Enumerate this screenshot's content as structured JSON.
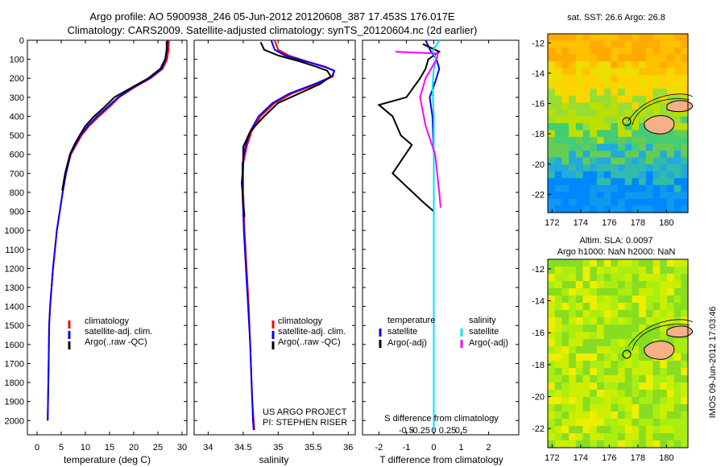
{
  "header": {
    "line1": "Argo profile: AO 5900938_246 05-Jun-2012 20120608_387 17.453S 176.017E",
    "line2": "Climatology: CARS2009. Satellite-adjusted climatology: synTS_20120604.nc (2d earlier)"
  },
  "colors": {
    "climatology": "#ff0000",
    "satellite": "#0000ff",
    "argo": "#000000",
    "sal_satellite": "#00e5ee",
    "sal_argo": "#ff00ff"
  },
  "depth_axis": {
    "ticks": [
      "0",
      "100",
      "200",
      "300",
      "400",
      "500",
      "600",
      "700",
      "800",
      "900",
      "1000",
      "1100",
      "1200",
      "1300",
      "1400",
      "1500",
      "1600",
      "1700",
      "1800",
      "1900",
      "2000"
    ],
    "ylim": [
      0,
      2075
    ]
  },
  "temp_panel": {
    "xlabel": "temperature (deg C)",
    "xticks": [
      "0",
      "5",
      "10",
      "15",
      "20",
      "25",
      "30"
    ],
    "xlim": [
      -2,
      31
    ],
    "legend": [
      "climatology",
      "satellite-adj. clim.",
      "Argo(..raw -QC)"
    ]
  },
  "sal_panel": {
    "xlabel": "salinity",
    "xticks": [
      "34",
      "34.5",
      "35",
      "35.5",
      "36"
    ],
    "xlim": [
      33.8,
      36.1
    ],
    "legend": [
      "climatology",
      "satellite-adj. clim.",
      "Argo(..raw -QC)"
    ],
    "credit1": "US ARGO PROJECT",
    "credit2": "PI: STEPHEN RISER"
  },
  "diff_panel": {
    "xlabel": "T difference from climatology",
    "xlabel_top": "S difference from climatology",
    "xticks": [
      "-2",
      "-1",
      "0",
      "1",
      "2"
    ],
    "xticks_s": [
      "-0.5",
      "-0.25",
      "0",
      "0.25",
      "0.5"
    ],
    "xlim": [
      -2.6,
      3.1
    ],
    "legend_t_title": "temperature",
    "legend_s_title": "salinity",
    "legend_t": [
      "satellite",
      "Argo(-adj)"
    ],
    "legend_s": [
      "satellite",
      "Argo(-adj)"
    ]
  },
  "map_sst": {
    "title": "sat. SST: 26.6  Argo: 26.8",
    "yticks": [
      "-12",
      "-14",
      "-16",
      "-18",
      "-20",
      "-22"
    ],
    "xticks": [
      "172",
      "174",
      "176",
      "178",
      "180"
    ],
    "lat_range": [
      -23.5,
      -11.5
    ],
    "lon_range": [
      170.5,
      180.5
    ]
  },
  "map_sla": {
    "title1": "Altim. SLA: 0.0097",
    "title2": "Argo h1000: NaN h2000: NaN",
    "yticks": [
      "-12",
      "-14",
      "-16",
      "-18",
      "-20",
      "-22"
    ],
    "xticks": [
      "172",
      "174",
      "176",
      "178",
      "180"
    ]
  },
  "watermark": "IMOS 09-Jun-2012 17:03:46",
  "chart_data": [
    {
      "type": "line",
      "xlabel": "temperature (deg C)",
      "ylabel": "",
      "xlim": [
        -2,
        31
      ],
      "ylim": [
        0,
        2075
      ],
      "y_axis_inverted": true,
      "series": [
        {
          "name": "climatology",
          "x": [
            27.3,
            27.2,
            26.9,
            26.0,
            23.5,
            20.0,
            17.0,
            15.0,
            12.8,
            10.8,
            9.2,
            8.1,
            7.0,
            6.0,
            5.3,
            4.7,
            4.1,
            3.7,
            3.3,
            3.0,
            2.7,
            2.5,
            2.4,
            2.2
          ],
          "y": [
            0,
            50,
            100,
            150,
            200,
            250,
            300,
            350,
            400,
            450,
            500,
            550,
            600,
            700,
            800,
            900,
            1000,
            1100,
            1200,
            1300,
            1400,
            1500,
            1700,
            2000
          ]
        },
        {
          "name": "satellite-adj. clim.",
          "x": [
            27.0,
            26.9,
            26.6,
            25.8,
            23.3,
            19.8,
            16.8,
            14.6,
            12.4,
            10.5,
            9.0,
            7.9,
            6.9,
            6.0,
            5.3,
            4.7,
            4.1,
            3.7,
            3.3,
            3.0,
            2.7,
            2.5,
            2.4,
            2.2
          ],
          "y": [
            0,
            50,
            100,
            150,
            200,
            250,
            300,
            350,
            400,
            450,
            500,
            550,
            600,
            700,
            800,
            900,
            1000,
            1100,
            1200,
            1300,
            1400,
            1500,
            1700,
            2000
          ]
        },
        {
          "name": "Argo(..raw -QC)",
          "x": [
            26.8,
            26.8,
            26.5,
            25.5,
            23.0,
            19.5,
            16.0,
            14.0,
            11.8,
            10.0,
            8.8,
            7.7,
            6.8,
            5.8,
            5.2
          ],
          "y": [
            5,
            50,
            100,
            150,
            200,
            250,
            300,
            350,
            400,
            450,
            500,
            550,
            600,
            700,
            790
          ]
        }
      ]
    },
    {
      "type": "line",
      "xlabel": "salinity",
      "ylabel": "",
      "xlim": [
        33.8,
        36.1
      ],
      "ylim": [
        0,
        2075
      ],
      "y_axis_inverted": true,
      "series": [
        {
          "name": "climatology",
          "x": [
            34.95,
            35.0,
            35.15,
            35.4,
            35.68,
            35.8,
            35.78,
            35.55,
            35.2,
            34.95,
            34.75,
            34.62,
            34.55,
            34.5,
            34.5,
            34.52,
            34.55,
            34.58,
            34.6,
            34.62,
            34.63,
            34.65,
            34.66
          ],
          "y": [
            0,
            50,
            80,
            110,
            140,
            160,
            190,
            230,
            280,
            330,
            400,
            480,
            560,
            650,
            800,
            1000,
            1200,
            1400,
            1600,
            1800,
            1900,
            2000,
            2050
          ]
        },
        {
          "name": "satellite-adj. clim.",
          "x": [
            34.9,
            34.95,
            35.1,
            35.38,
            35.66,
            35.8,
            35.77,
            35.52,
            35.16,
            34.92,
            34.72,
            34.6,
            34.53,
            34.49,
            34.49,
            34.51,
            34.54,
            34.57,
            34.6,
            34.62,
            34.63,
            34.64,
            34.65
          ],
          "y": [
            0,
            50,
            80,
            110,
            140,
            160,
            190,
            230,
            280,
            330,
            400,
            480,
            560,
            650,
            800,
            1000,
            1200,
            1400,
            1600,
            1800,
            1900,
            2000,
            2050
          ]
        },
        {
          "name": "Argo(..raw -QC)",
          "x": [
            34.75,
            34.8,
            35.0,
            35.3,
            35.55,
            35.7,
            35.75,
            35.6,
            35.3,
            35.0,
            34.8,
            34.6,
            34.5,
            34.5,
            34.48,
            34.5,
            34.52
          ],
          "y": [
            10,
            50,
            80,
            110,
            140,
            160,
            190,
            230,
            280,
            330,
            400,
            480,
            560,
            650,
            750,
            850,
            930
          ]
        }
      ]
    },
    {
      "type": "line",
      "xlabel": "T difference from climatology",
      "ylabel": "",
      "xlim": [
        -2.6,
        3.1
      ],
      "ylim": [
        0,
        2075
      ],
      "y_axis_inverted": true,
      "series": [
        {
          "name": "temperature satellite",
          "x": [
            -0.3,
            -0.1,
            0.1,
            0.2,
            0.05,
            -0.15,
            -0.05,
            0.0,
            0.0,
            0.0,
            0.0
          ],
          "y": [
            0,
            60,
            100,
            150,
            220,
            300,
            400,
            600,
            800,
            1200,
            2050
          ]
        },
        {
          "name": "temperature Argo(-adj)",
          "x": [
            -0.4,
            0.2,
            -0.2,
            -0.3,
            -0.5,
            -1.0,
            -2.0,
            -1.5,
            -1.2,
            -0.8,
            -1.5,
            -0.4,
            0.0
          ],
          "y": [
            20,
            60,
            100,
            150,
            200,
            300,
            340,
            400,
            500,
            550,
            700,
            850,
            900
          ]
        },
        {
          "name": "salinity satellite",
          "x": [
            0.2,
            -0.05,
            0.1,
            0.0,
            -0.05,
            0.0,
            0.0,
            0.0,
            0.0
          ],
          "y": [
            0,
            60,
            100,
            150,
            250,
            400,
            800,
            1200,
            2050
          ]
        },
        {
          "name": "salinity Argo(-adj)",
          "x": [
            -1.4,
            0.15,
            0.1,
            -0.3,
            -0.5,
            -0.3,
            0.05,
            0.2,
            0.25
          ],
          "y": [
            60,
            70,
            100,
            200,
            300,
            450,
            600,
            800,
            880
          ]
        }
      ]
    }
  ]
}
